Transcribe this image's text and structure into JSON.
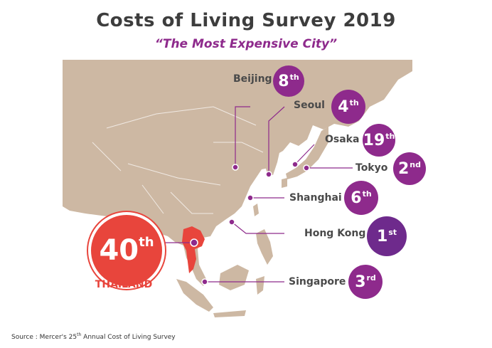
{
  "title": "Costs of Living Survey 2019",
  "subtitle": "“The Most Expensive City”",
  "colors": {
    "land": "#cdb8a3",
    "purple": "#8e2a8c",
    "thailand": "#e8453c",
    "border": "#ffffff"
  },
  "cities": [
    {
      "name": "Beijing",
      "rank": "8",
      "suffix": "th"
    },
    {
      "name": "Seoul",
      "rank": "4",
      "suffix": "th"
    },
    {
      "name": "Osaka",
      "rank": "19",
      "suffix": "th"
    },
    {
      "name": "Tokyo",
      "rank": "2",
      "suffix": "nd"
    },
    {
      "name": "Shanghai",
      "rank": "6",
      "suffix": "th"
    },
    {
      "name": "Hong Kong",
      "rank": "1",
      "suffix": "st"
    },
    {
      "name": "Singapore",
      "rank": "3",
      "suffix": "rd"
    }
  ],
  "thailand": {
    "rank": "40",
    "suffix": "th",
    "label": "THAILAND"
  },
  "source": {
    "prefix": "Source : Mercer's 25",
    "sup": "th",
    "suffix": " Annual Cost of Living Survey"
  }
}
